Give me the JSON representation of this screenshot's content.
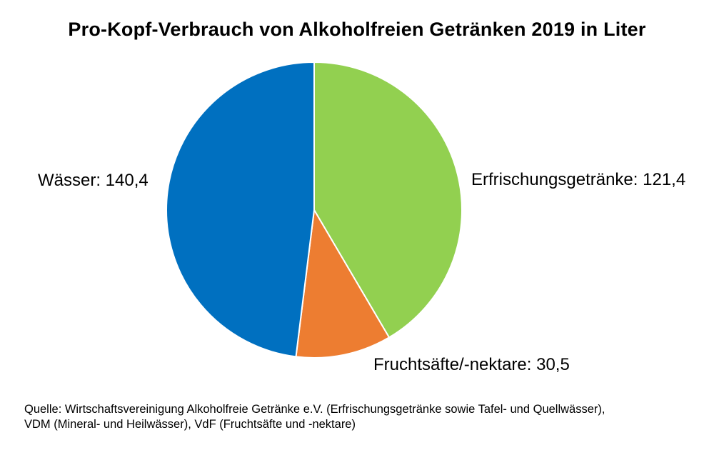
{
  "chart_data": {
    "type": "pie",
    "title": "Pro-Kopf-Verbrauch von Alkoholfreien Getränken 2019 in Liter",
    "slices": [
      {
        "label": "Erfrischungsgetränke",
        "value": 121.4,
        "value_text": "121,4",
        "color": "#92D050"
      },
      {
        "label": "Fruchtsäfte/-nektare",
        "value": 30.5,
        "value_text": "30,5",
        "color": "#ED7D31"
      },
      {
        "label": "Wässer",
        "value": 140.4,
        "value_text": "140,4",
        "color": "#0070C0"
      }
    ],
    "start_angle": "12 o'clock",
    "direction": "clockwise",
    "slice_border_color": "#FFFFFF",
    "legend": "none",
    "label_style": "category: value, outside"
  },
  "source_note": {
    "line1": "Quelle: Wirtschaftsvereinigung Alkoholfreie Getränke e.V. (Erfrischungsgetränke sowie Tafel- und Quellwässer),",
    "line2": "VDM (Mineral- und Heilwässer), VdF (Fruchtsäfte und -nektare)"
  }
}
